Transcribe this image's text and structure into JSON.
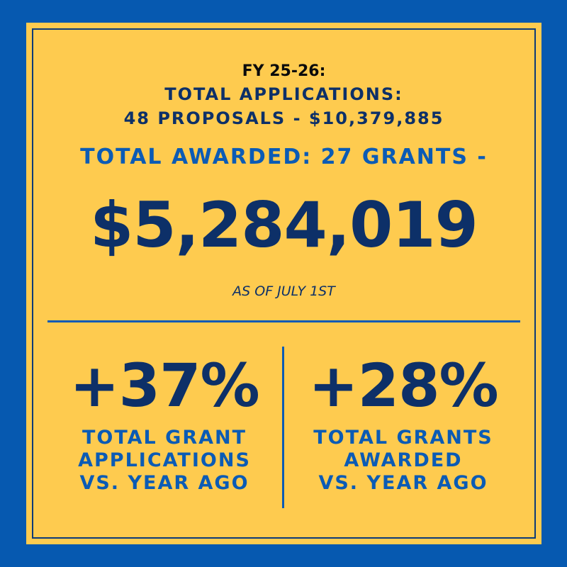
{
  "header": {
    "fiscal_year": "FY 25-26:",
    "applications_title": "TOTAL APPLICATIONS:",
    "applications_detail": "48 PROPOSALS - $10,379,885"
  },
  "awarded": {
    "title": "TOTAL AWARDED: 27 GRANTS -",
    "amount": "$5,284,019",
    "as_of": "AS OF JULY 1ST"
  },
  "stats": [
    {
      "value": "+37%",
      "label_lines": [
        "TOTAL GRANT",
        "APPLICATIONS",
        "VS. YEAR AGO"
      ]
    },
    {
      "value": "+28%",
      "label_lines": [
        "TOTAL GRANTS",
        "AWARDED",
        "VS. YEAR AGO"
      ]
    }
  ],
  "colors": {
    "outer_background": "#0659b0",
    "card_background": "#fecb4f",
    "dark_navy": "#0d3068",
    "bright_blue": "#0b5bb5"
  }
}
